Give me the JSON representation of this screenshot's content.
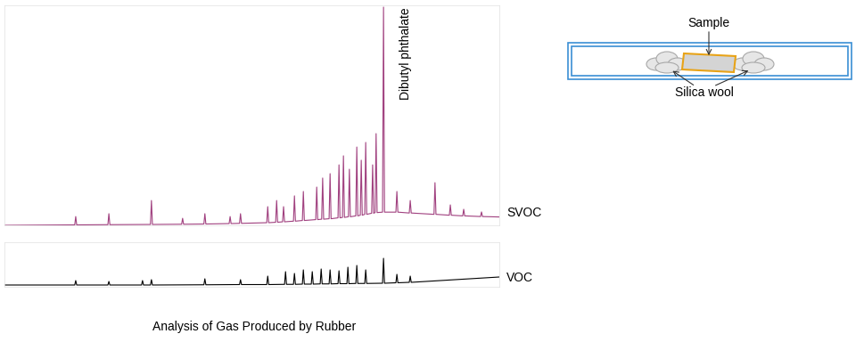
{
  "chart_data": [
    {
      "type": "line",
      "title": "Analysis of Gas Produced by Rubber",
      "annotations": [
        "Dibutyl phthalate"
      ],
      "xlim": [
        0,
        100
      ],
      "ylim": [
        0,
        100
      ],
      "tick_labels": false,
      "series": [
        {
          "name": "SVOC",
          "color": "#a0407f",
          "x": [
            0,
            14.2,
            14.4,
            14.6,
            20.9,
            21.1,
            21.3,
            29.5,
            29.7,
            29.9,
            35.8,
            36.0,
            36.2,
            40.3,
            40.5,
            40.7,
            45.4,
            45.6,
            45.8,
            47.5,
            47.7,
            47.9,
            53.0,
            53.2,
            53.4,
            54.8,
            55.0,
            55.2,
            56.2,
            56.4,
            56.6,
            58.4,
            58.6,
            58.8,
            60.2,
            60.4,
            60.6,
            62.9,
            63.1,
            63.3,
            64.1,
            64.3,
            64.5,
            65.6,
            65.8,
            66.0,
            67.4,
            67.6,
            67.8,
            68.3,
            68.5,
            68.7,
            69.5,
            69.7,
            69.9,
            71.0,
            71.2,
            71.4,
            71.9,
            72.1,
            72.3,
            72.8,
            73.0,
            73.2,
            74.2,
            74.4,
            74.6,
            74.9,
            75.1,
            75.3,
            76.4,
            76.6,
            76.8,
            79.1,
            79.3,
            79.5,
            81.8,
            82.0,
            82.2,
            86.8,
            87.0,
            87.2,
            89.9,
            90.1,
            90.3,
            92.6,
            92.8,
            93.0,
            96.2,
            96.4,
            96.6,
            100
          ],
          "values": [
            0,
            0.2,
            4.0,
            0.2,
            0.3,
            5.3,
            0.3,
            0.4,
            11.3,
            0.4,
            0.5,
            3.2,
            0.5,
            0.6,
            5.3,
            0.6,
            0.8,
            4.0,
            0.8,
            0.9,
            5.3,
            0.9,
            1.2,
            8.5,
            1.2,
            1.4,
            11.3,
            1.4,
            1.6,
            8.5,
            1.6,
            1.9,
            13.4,
            1.9,
            2.2,
            15.4,
            2.2,
            2.6,
            17.4,
            2.6,
            2.8,
            21.5,
            2.8,
            3.0,
            23.5,
            3.0,
            3.4,
            27.5,
            3.4,
            3.6,
            31.6,
            3.6,
            3.9,
            25.5,
            3.9,
            4.3,
            35.6,
            4.3,
            4.6,
            29.6,
            4.6,
            5.0,
            37.7,
            5.0,
            5.5,
            27.5,
            5.5,
            5.8,
            41.7,
            5.8,
            6.0,
            99.2,
            6.0,
            6.0,
            15.4,
            6.0,
            5.6,
            11.3,
            5.6,
            5.0,
            19.4,
            5.0,
            4.6,
            9.3,
            4.6,
            4.3,
            7.3,
            4.3,
            4.0,
            6.1,
            4.0,
            3.8
          ]
        }
      ]
    },
    {
      "type": "line",
      "xlim": [
        0,
        100
      ],
      "ylim": [
        0,
        20
      ],
      "tick_labels": false,
      "series": [
        {
          "name": "VOC",
          "color": "#000000",
          "x": [
            0,
            14.2,
            14.4,
            14.6,
            20.9,
            21.1,
            21.3,
            27.7,
            27.9,
            28.1,
            29.5,
            29.7,
            29.9,
            40.3,
            40.5,
            40.7,
            47.5,
            47.7,
            47.9,
            53.0,
            53.2,
            53.4,
            56.6,
            56.8,
            57.0,
            58.4,
            58.6,
            58.8,
            60.2,
            60.4,
            60.6,
            62.0,
            62.2,
            62.4,
            63.8,
            64.0,
            64.2,
            65.6,
            65.8,
            66.0,
            67.4,
            67.6,
            67.8,
            69.2,
            69.4,
            69.6,
            71.0,
            71.2,
            71.4,
            72.8,
            73.0,
            73.2,
            76.4,
            76.6,
            76.8,
            79.1,
            79.3,
            79.5,
            81.8,
            82.0,
            82.2,
            100
          ],
          "values": [
            0.8,
            0.8,
            2.8,
            0.8,
            0.8,
            2.4,
            0.8,
            0.8,
            2.8,
            0.8,
            0.8,
            3.2,
            0.8,
            0.9,
            3.6,
            0.9,
            1.0,
            3.2,
            1.0,
            1.0,
            4.8,
            1.0,
            1.1,
            6.8,
            1.1,
            1.1,
            6.0,
            1.1,
            1.2,
            7.6,
            1.2,
            1.2,
            6.8,
            1.2,
            1.3,
            8.0,
            1.3,
            1.3,
            7.6,
            1.3,
            1.4,
            7.2,
            1.4,
            1.4,
            8.8,
            1.4,
            1.5,
            9.6,
            1.5,
            1.5,
            7.6,
            1.5,
            1.6,
            12.8,
            1.6,
            1.8,
            5.6,
            1.8,
            2.0,
            4.8,
            2.0,
            4.4
          ]
        }
      ]
    }
  ],
  "diagram": {
    "sample_label": "Sample",
    "wool_label": "Silica wool"
  }
}
